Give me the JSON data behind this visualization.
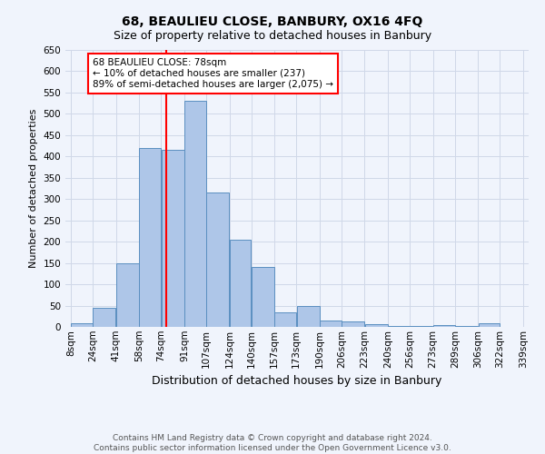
{
  "title": "68, BEAULIEU CLOSE, BANBURY, OX16 4FQ",
  "subtitle": "Size of property relative to detached houses in Banbury",
  "xlabel": "Distribution of detached houses by size in Banbury",
  "ylabel": "Number of detached properties",
  "footer_line1": "Contains HM Land Registry data © Crown copyright and database right 2024.",
  "footer_line2": "Contains public sector information licensed under the Open Government Licence v3.0.",
  "bin_labels": [
    "8sqm",
    "24sqm",
    "41sqm",
    "58sqm",
    "74sqm",
    "91sqm",
    "107sqm",
    "124sqm",
    "140sqm",
    "157sqm",
    "173sqm",
    "190sqm",
    "206sqm",
    "223sqm",
    "240sqm",
    "256sqm",
    "273sqm",
    "289sqm",
    "306sqm",
    "322sqm",
    "339sqm"
  ],
  "bar_values": [
    8,
    45,
    150,
    420,
    415,
    530,
    315,
    205,
    140,
    35,
    48,
    15,
    13,
    7,
    2,
    2,
    5,
    2,
    8
  ],
  "bar_color": "#aec6e8",
  "bar_edge_color": "#5a8fc0",
  "vline_x": 78,
  "vline_color": "red",
  "annotation_title": "68 BEAULIEU CLOSE: 78sqm",
  "annotation_line1": "← 10% of detached houses are smaller (237)",
  "annotation_line2": "89% of semi-detached houses are larger (2,075) →",
  "annotation_box_color": "red",
  "ylim": [
    0,
    650
  ],
  "yticks": [
    0,
    50,
    100,
    150,
    200,
    250,
    300,
    350,
    400,
    450,
    500,
    550,
    600,
    650
  ],
  "grid_color": "#d0d8e8",
  "background_color": "#f0f4fc",
  "title_fontsize": 10,
  "subtitle_fontsize": 9,
  "xlabel_fontsize": 9,
  "ylabel_fontsize": 8,
  "tick_fontsize": 7.5,
  "footer_fontsize": 6.5
}
